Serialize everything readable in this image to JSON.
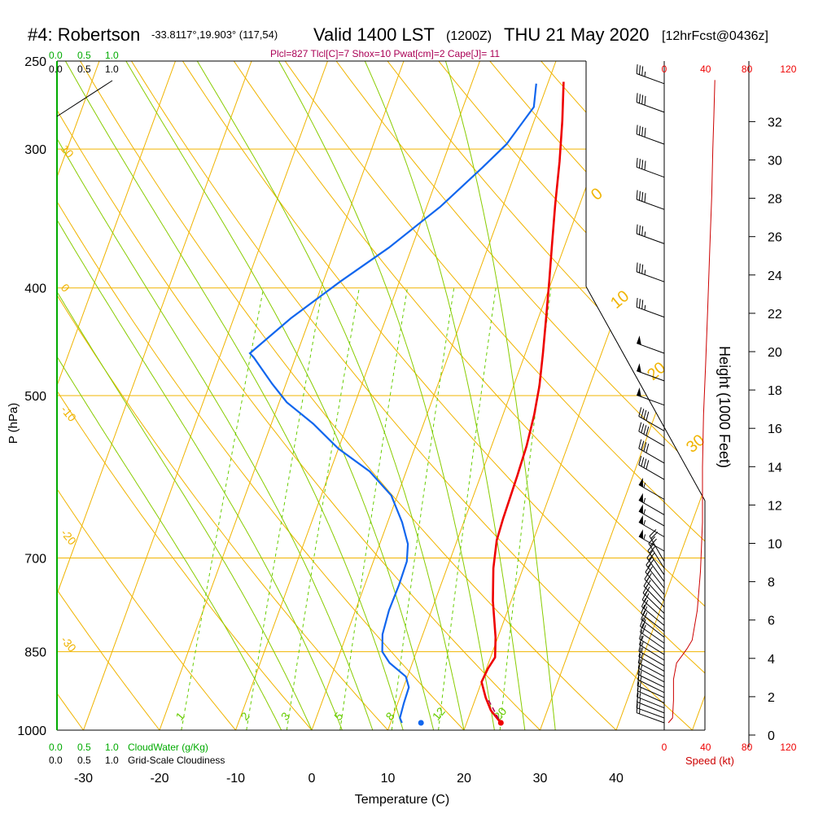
{
  "header": {
    "station": "#4: Robertson",
    "coords": "-33.8117°,19.903° (117,54)",
    "valid": "Valid 1400 LST",
    "z": "(1200Z)",
    "date": "THU 21 May 2020",
    "fcst": "[12hrFcst@0436z]",
    "indices": "Plcl=827 Tlcl[C]=7 Shox=10 Pwat[cm]=2 Cape[J]= 11"
  },
  "top_scale": {
    "green": [
      "0.0",
      "0.5",
      "1.0"
    ],
    "black": [
      "0.0",
      "0.5",
      "1.0"
    ]
  },
  "bottom_scale": {
    "green": [
      "0.0",
      "0.5",
      "1.0"
    ],
    "green_label": "CloudWater (g/Kg)",
    "black": [
      "0.0",
      "0.5",
      "1.0"
    ],
    "black_label": "Grid-Scale Cloudiness"
  },
  "colors": {
    "isobar": "#f0b400",
    "isotherm": "#f0b400",
    "dry_adiabat": "#f0b400",
    "moist_adiabat": "#88cc00",
    "mixing_ratio": "#66cc00",
    "temperature": "#ee0000",
    "dewpoint": "#1166ee",
    "cloud": "#00aa00",
    "speed": "#cc0000",
    "magenta": "#aa0055"
  },
  "chart_data": {
    "type": "line",
    "title": "",
    "xlabel": "Temperature (C)",
    "ylabel": "P (hPa)",
    "y2label": "Height (1000 Feet)",
    "speed_label": "Speed (kt)",
    "x_ticks": [
      "-30",
      "-20",
      "-10",
      "0",
      "10",
      "20",
      "30",
      "40"
    ],
    "pressure_ticks": [
      "250",
      "300",
      "400",
      "500",
      "700",
      "850",
      "1000"
    ],
    "height_ticks": [
      "0",
      "2",
      "4",
      "6",
      "8",
      "10",
      "12",
      "14",
      "16",
      "18",
      "20",
      "22",
      "24",
      "26",
      "28",
      "30",
      "32"
    ],
    "speed_ticks_top": [
      "0",
      "40",
      "80",
      "120"
    ],
    "speed_ticks_bottom": [
      "0",
      "40",
      "80",
      "120"
    ],
    "isotherm_labels": [
      "10",
      "0",
      "-10",
      "-20",
      "-30"
    ],
    "dry_adiabat_labels": [
      "0",
      "10",
      "20",
      "30"
    ],
    "mixing_ratio_labels": [
      "1",
      "2",
      "3",
      "5",
      "8",
      "12",
      "20"
    ],
    "series": [
      {
        "name": "",
        "points": [
          [
            24.5,
            985
          ],
          [
            22.6,
            960
          ],
          [
            21.3,
            935
          ],
          [
            20.0,
            905
          ],
          [
            20.2,
            880
          ],
          [
            20.6,
            860
          ],
          [
            19.7,
            825
          ],
          [
            17.6,
            765
          ],
          [
            16.1,
            715
          ],
          [
            15.2,
            675
          ],
          [
            15.0,
            645
          ],
          [
            14.9,
            615
          ],
          [
            14.8,
            590
          ],
          [
            14.6,
            555
          ],
          [
            14.1,
            520
          ],
          [
            13.4,
            490
          ],
          [
            12.3,
            458
          ],
          [
            11.0,
            425
          ],
          [
            9.7,
            395
          ],
          [
            8.3,
            366
          ],
          [
            6.8,
            337
          ],
          [
            5.3,
            308
          ],
          [
            3.7,
            283
          ],
          [
            2.0,
            261
          ]
        ]
      },
      {
        "name": "",
        "points": [
          [
            11.5,
            985
          ],
          [
            11.0,
            975
          ],
          [
            10.8,
            945
          ],
          [
            10.7,
            915
          ],
          [
            9.8,
            895
          ],
          [
            7.0,
            870
          ],
          [
            5.5,
            850
          ],
          [
            4.7,
            820
          ],
          [
            4.4,
            780
          ],
          [
            4.5,
            740
          ],
          [
            4.4,
            705
          ],
          [
            3.7,
            680
          ],
          [
            1.9,
            650
          ],
          [
            -0.8,
            615
          ],
          [
            -4.8,
            585
          ],
          [
            -10,
            558
          ],
          [
            -14.5,
            530
          ],
          [
            -19,
            507
          ],
          [
            -21.8,
            488
          ],
          [
            -25.5,
            462
          ],
          [
            -26.2,
            458
          ],
          [
            -22.5,
            426
          ],
          [
            -17.8,
            395
          ],
          [
            -13,
            368
          ],
          [
            -8.2,
            338
          ],
          [
            -4.6,
            312
          ],
          [
            -2.5,
            297
          ],
          [
            -0.7,
            275
          ],
          [
            -1.5,
            262
          ]
        ]
      }
    ],
    "surface_points": [
      {
        "name": "",
        "t": 24.5,
        "p": 985
      },
      {
        "name": "",
        "t": 14.0,
        "p": 985
      }
    ],
    "parcel": {
      "name": "",
      "points": [
        [
          21.8,
          940
        ],
        [
          24.2,
          980
        ]
      ]
    },
    "wind_speed": {
      "name": "",
      "points": [
        [
          4,
          985
        ],
        [
          8,
          975
        ],
        [
          9,
          940
        ],
        [
          9,
          900
        ],
        [
          12,
          870
        ],
        [
          18,
          855
        ],
        [
          22,
          845
        ],
        [
          27,
          830
        ],
        [
          32,
          780
        ],
        [
          35,
          720
        ],
        [
          37,
          650
        ],
        [
          37,
          580
        ],
        [
          38,
          520
        ],
        [
          40,
          470
        ],
        [
          42,
          420
        ],
        [
          44,
          370
        ],
        [
          46,
          330
        ],
        [
          47,
          300
        ],
        [
          48,
          280
        ],
        [
          49,
          260
        ]
      ]
    },
    "wind_barbs": [
      {
        "p": 985,
        "dir": 290,
        "spd": 15
      },
      {
        "p": 975,
        "dir": 290,
        "spd": 15
      },
      {
        "p": 965,
        "dir": 292,
        "spd": 15
      },
      {
        "p": 955,
        "dir": 292,
        "spd": 15
      },
      {
        "p": 945,
        "dir": 294,
        "spd": 15
      },
      {
        "p": 935,
        "dir": 294,
        "spd": 15
      },
      {
        "p": 925,
        "dir": 296,
        "spd": 15
      },
      {
        "p": 915,
        "dir": 296,
        "spd": 15
      },
      {
        "p": 905,
        "dir": 298,
        "spd": 15
      },
      {
        "p": 895,
        "dir": 298,
        "spd": 15
      },
      {
        "p": 885,
        "dir": 300,
        "spd": 15
      },
      {
        "p": 875,
        "dir": 300,
        "spd": 15
      },
      {
        "p": 865,
        "dir": 302,
        "spd": 15
      },
      {
        "p": 855,
        "dir": 302,
        "spd": 15
      },
      {
        "p": 845,
        "dir": 305,
        "spd": 20
      },
      {
        "p": 835,
        "dir": 305,
        "spd": 20
      },
      {
        "p": 825,
        "dir": 308,
        "spd": 20
      },
      {
        "p": 815,
        "dir": 308,
        "spd": 20
      },
      {
        "p": 805,
        "dir": 310,
        "spd": 20
      },
      {
        "p": 795,
        "dir": 312,
        "spd": 20
      },
      {
        "p": 785,
        "dir": 314,
        "spd": 20
      },
      {
        "p": 775,
        "dir": 316,
        "spd": 20
      },
      {
        "p": 765,
        "dir": 318,
        "spd": 20
      },
      {
        "p": 755,
        "dir": 320,
        "spd": 20
      },
      {
        "p": 745,
        "dir": 322,
        "spd": 20
      },
      {
        "p": 735,
        "dir": 324,
        "spd": 20
      },
      {
        "p": 725,
        "dir": 326,
        "spd": 20
      },
      {
        "p": 715,
        "dir": 328,
        "spd": 20
      },
      {
        "p": 705,
        "dir": 330,
        "spd": 20
      },
      {
        "p": 690,
        "dir": 300,
        "spd": 55
      },
      {
        "p": 670,
        "dir": 300,
        "spd": 55
      },
      {
        "p": 655,
        "dir": 300,
        "spd": 55
      },
      {
        "p": 640,
        "dir": 300,
        "spd": 55
      },
      {
        "p": 620,
        "dir": 300,
        "spd": 55
      },
      {
        "p": 595,
        "dir": 300,
        "spd": 40
      },
      {
        "p": 575,
        "dir": 300,
        "spd": 40
      },
      {
        "p": 555,
        "dir": 300,
        "spd": 40
      },
      {
        "p": 538,
        "dir": 300,
        "spd": 40
      },
      {
        "p": 510,
        "dir": 290,
        "spd": 50
      },
      {
        "p": 485,
        "dir": 290,
        "spd": 50
      },
      {
        "p": 458,
        "dir": 290,
        "spd": 50
      },
      {
        "p": 425,
        "dir": 290,
        "spd": 35
      },
      {
        "p": 395,
        "dir": 290,
        "spd": 35
      },
      {
        "p": 365,
        "dir": 290,
        "spd": 35
      },
      {
        "p": 340,
        "dir": 290,
        "spd": 40
      },
      {
        "p": 318,
        "dir": 290,
        "spd": 40
      },
      {
        "p": 297,
        "dir": 290,
        "spd": 40
      },
      {
        "p": 278,
        "dir": 290,
        "spd": 40
      },
      {
        "p": 262,
        "dir": 290,
        "spd": 35
      }
    ]
  }
}
